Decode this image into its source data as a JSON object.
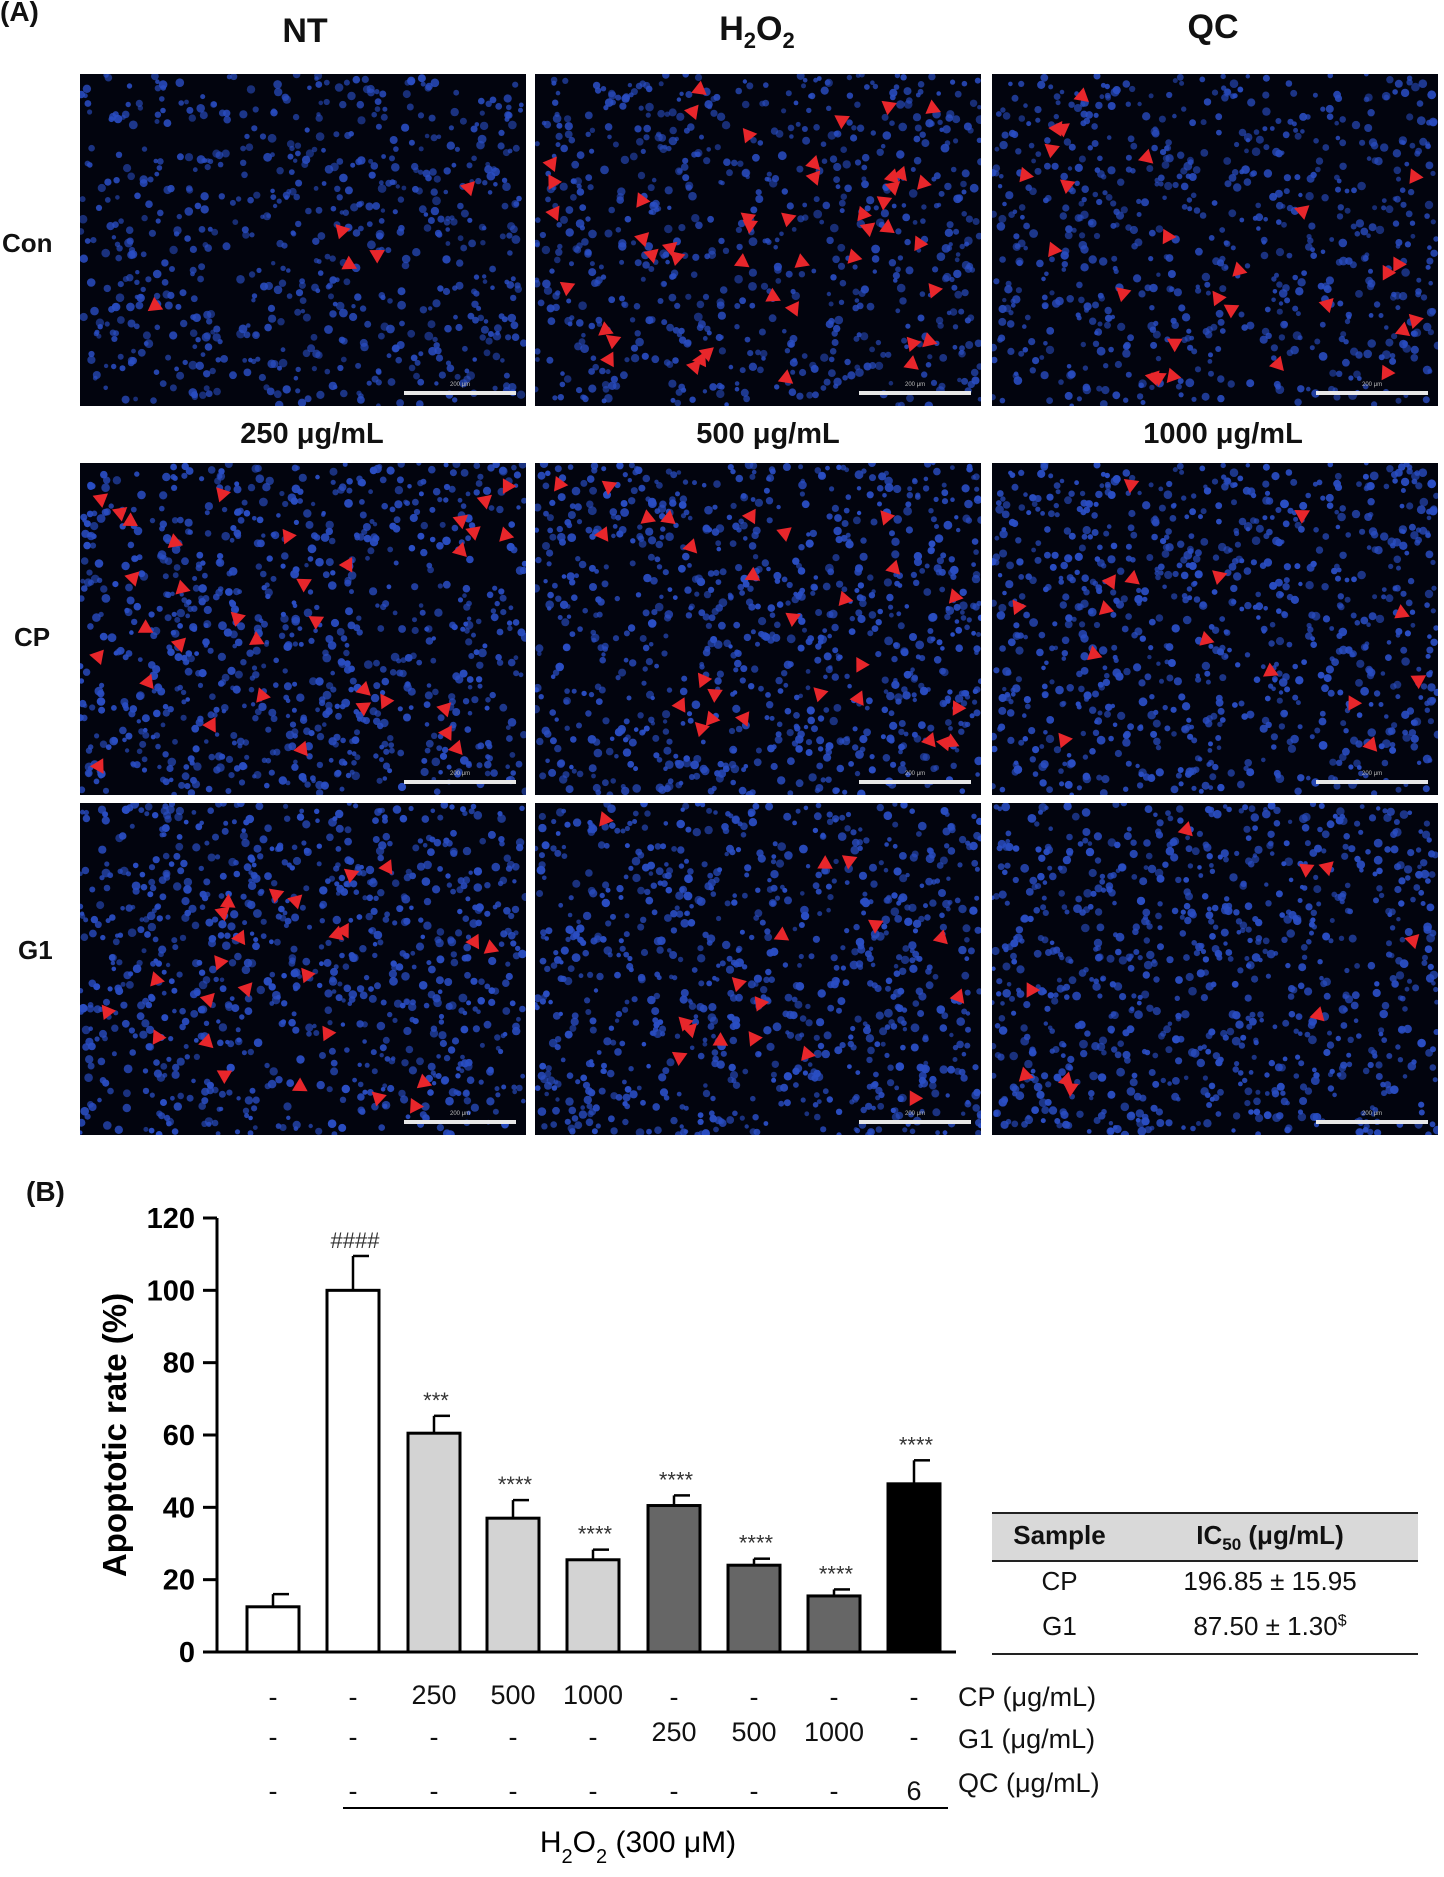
{
  "panel_a": {
    "label": "(A)",
    "columns_top": [
      "NT",
      "H2O2",
      "QC"
    ],
    "columns_conc": [
      "250 μg/mL",
      "500 μg/mL",
      "1000 μg/mL"
    ],
    "rows": [
      "Con",
      "CP",
      "G1"
    ],
    "scale_bar_text": "200 μm",
    "arrow_color": "#e8262b",
    "nuclei_color": "#2a4ec4",
    "arrow_counts": [
      [
        5,
        45,
        26
      ],
      [
        33,
        27,
        15
      ],
      [
        25,
        16,
        9
      ]
    ]
  },
  "panel_b": {
    "label": "(B)"
  },
  "chart_data": {
    "type": "bar",
    "ylabel": "Apoptotic rate (%)",
    "ylim": [
      0,
      120
    ],
    "yticks": [
      0,
      20,
      40,
      60,
      80,
      100,
      120
    ],
    "bars": [
      {
        "value": 12.5,
        "error": 3.5,
        "fill": "#ffffff",
        "sig": ""
      },
      {
        "value": 100,
        "error": 9.5,
        "fill": "#ffffff",
        "sig": "####"
      },
      {
        "value": 60.5,
        "error": 4.8,
        "fill": "#d3d3d3",
        "sig": "***"
      },
      {
        "value": 37,
        "error": 5,
        "fill": "#d3d3d3",
        "sig": "****"
      },
      {
        "value": 25.5,
        "error": 2.8,
        "fill": "#d3d3d3",
        "sig": "****"
      },
      {
        "value": 40.5,
        "error": 2.8,
        "fill": "#666666",
        "sig": "****"
      },
      {
        "value": 24,
        "error": 1.8,
        "fill": "#666666",
        "sig": "****"
      },
      {
        "value": 15.5,
        "error": 1.8,
        "fill": "#666666",
        "sig": "****"
      },
      {
        "value": 46.5,
        "error": 6.5,
        "fill": "#000000",
        "sig": "****"
      }
    ],
    "conditions": [
      {
        "label": "CP (μg/mL)",
        "values": [
          "-",
          "-",
          "250",
          "500",
          "1000",
          "-",
          "-",
          "-",
          "-"
        ]
      },
      {
        "label": "G1 (μg/mL)",
        "values": [
          "-",
          "-",
          "-",
          "-",
          "-",
          "250",
          "500",
          "1000",
          "-"
        ]
      },
      {
        "label": "QC (μg/mL)",
        "values": [
          "-",
          "-",
          "-",
          "-",
          "-",
          "-",
          "-",
          "-",
          "6"
        ]
      }
    ],
    "treatment_label": "H2O2 (300 μM)",
    "table": {
      "headers": [
        "Sample",
        "IC50 (μg/mL)"
      ],
      "rows": [
        [
          "CP",
          "196.85 ± 15.95"
        ],
        [
          "G1",
          "87.50 ± 1.30$"
        ]
      ]
    }
  }
}
